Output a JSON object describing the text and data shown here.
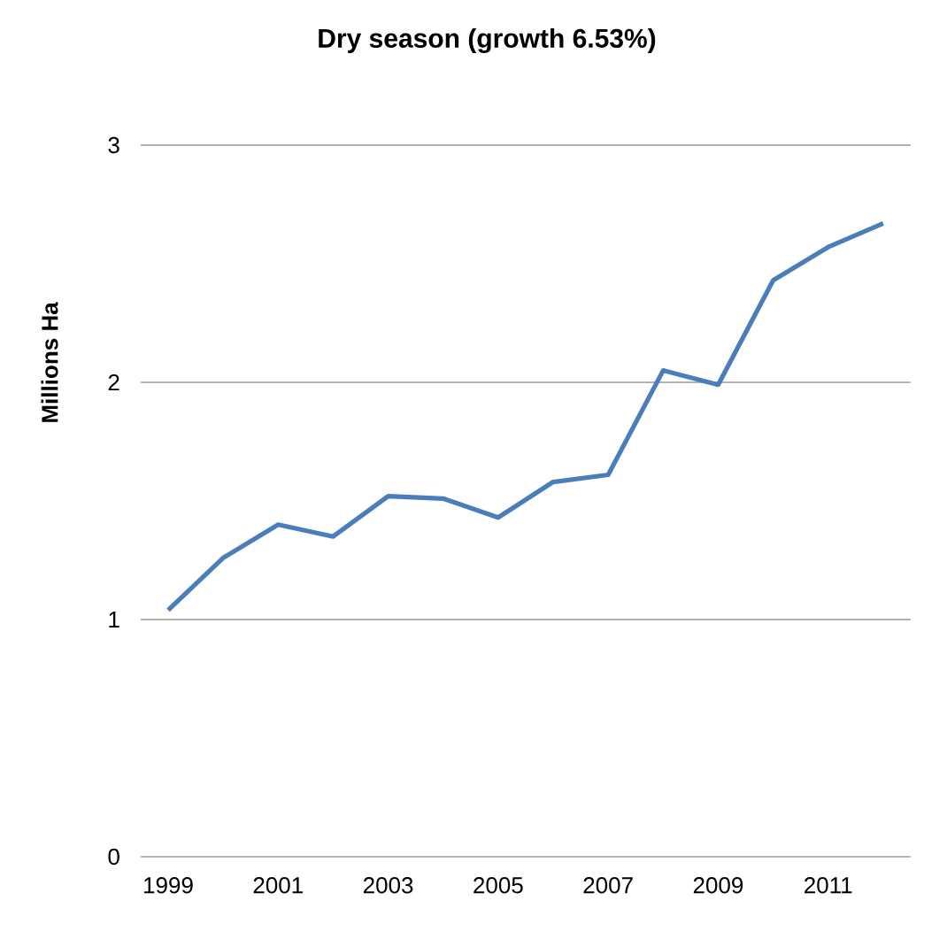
{
  "chart_data": {
    "type": "line",
    "title": "Dry season (growth 6.53%)",
    "ylabel": "Millions Ha",
    "categories": [
      "1999",
      null,
      "2001",
      null,
      "2003",
      null,
      "2005",
      null,
      "2007",
      null,
      "2009",
      null,
      "2011",
      null
    ],
    "series": [
      {
        "color": "#4a7ebb",
        "values": [
          1.04,
          1.26,
          1.4,
          1.35,
          1.52,
          1.51,
          1.43,
          1.58,
          1.61,
          2.05,
          1.99,
          2.43,
          2.57,
          2.67
        ]
      }
    ],
    "ylim": [
      0,
      3
    ],
    "yticks": [
      0,
      1,
      2,
      3
    ],
    "grid": "y",
    "marker": "none",
    "line_style": "solid"
  }
}
